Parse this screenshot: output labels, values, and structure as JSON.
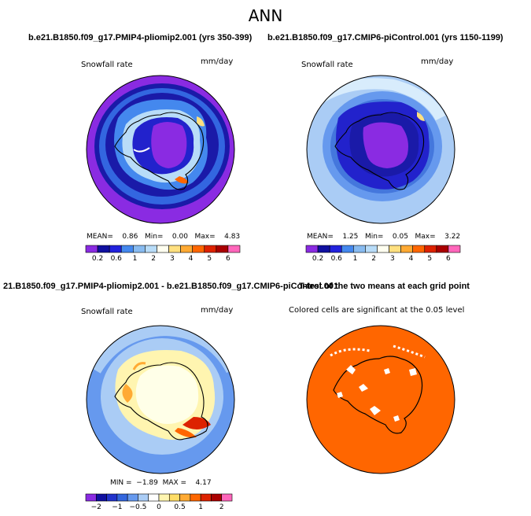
{
  "page": {
    "title": "ANN",
    "panel_titles": {
      "top_left": "b.e21.B1850.f09_g17.PMIP4-pliomip2.001 (yrs 350-399)",
      "top_right": "b.e21.B1850.f09_g17.CMIP6-piControl.001 (yrs 1150-1199)",
      "bottom_left": "21.B1850.f09_g17.PMIP4-pliomip2.001 - b.e21.B1850.f09_g17.CMIP6-piControl.001",
      "bottom_right": "T-test of the two means at each grid point"
    }
  },
  "chart_data": [
    {
      "type": "heatmap",
      "id": "panel1",
      "title": "b.e21.B1850.f09_g17.PMIP4-pliomip2.001 (yrs 350-399)",
      "variable": "Snowfall rate",
      "units": "mm/day",
      "stats": {
        "mean": "0.86",
        "min": "0.00",
        "max": "4.83"
      },
      "stats_text": "MEAN=    0.86   Min=    0.00   Max=    4.83",
      "colorbar_ticks": [
        "0.2",
        "0.6",
        "1",
        "2",
        "3",
        "4",
        "5",
        "6"
      ],
      "colorbar_colors": [
        "#8a2be2",
        "#1010a0",
        "#2222dd",
        "#4488ee",
        "#88bbf0",
        "#b8dcf8",
        "#fffff0",
        "#ffe080",
        "#ffaa33",
        "#ff6600",
        "#dd2200",
        "#aa0000",
        "#ff66bb"
      ]
    },
    {
      "type": "heatmap",
      "id": "panel2",
      "title": "b.e21.B1850.f09_g17.CMIP6-piControl.001 (yrs 1150-1199)",
      "variable": "Snowfall rate",
      "units": "mm/day",
      "stats": {
        "mean": "1.25",
        "min": "0.05",
        "max": "3.22"
      },
      "stats_text": "MEAN=    1.25   Min=    0.05   Max=    3.22",
      "colorbar_ticks": [
        "0.2",
        "0.6",
        "1",
        "2",
        "3",
        "4",
        "5",
        "6"
      ],
      "colorbar_colors": [
        "#8a2be2",
        "#1010a0",
        "#2222dd",
        "#4488ee",
        "#88bbf0",
        "#b8dcf8",
        "#fffff0",
        "#ffe080",
        "#ffaa33",
        "#ff6600",
        "#dd2200",
        "#aa0000",
        "#ff66bb"
      ]
    },
    {
      "type": "heatmap",
      "id": "panel3",
      "title": "21.B1850.f09_g17.PMIP4-pliomip2.001 - b.e21.B1850.f09_g17.CMIP6-piControl.001",
      "variable": "Snowfall rate",
      "units": "mm/day",
      "stats": {
        "min": "-1.89",
        "max": "4.17"
      },
      "stats_text": "MIN =  −1.89  MAX =    4.17",
      "colorbar_ticks": [
        "−2",
        "−1",
        "−0.5",
        "0",
        "0.5",
        "1",
        "2"
      ],
      "colorbar_colors": [
        "#8a2be2",
        "#1010a0",
        "#2233cc",
        "#3366dd",
        "#6699ee",
        "#aaccf5",
        "#ffffff",
        "#fff5b0",
        "#ffdd66",
        "#ffaa33",
        "#ff6600",
        "#dd2200",
        "#aa0000",
        "#ff66bb"
      ]
    },
    {
      "type": "heatmap",
      "id": "panel4",
      "title": "T-test of the two means at each grid point",
      "caption": "Colored cells are significant at the 0.05 level",
      "fill_color": "#ff6600"
    }
  ]
}
